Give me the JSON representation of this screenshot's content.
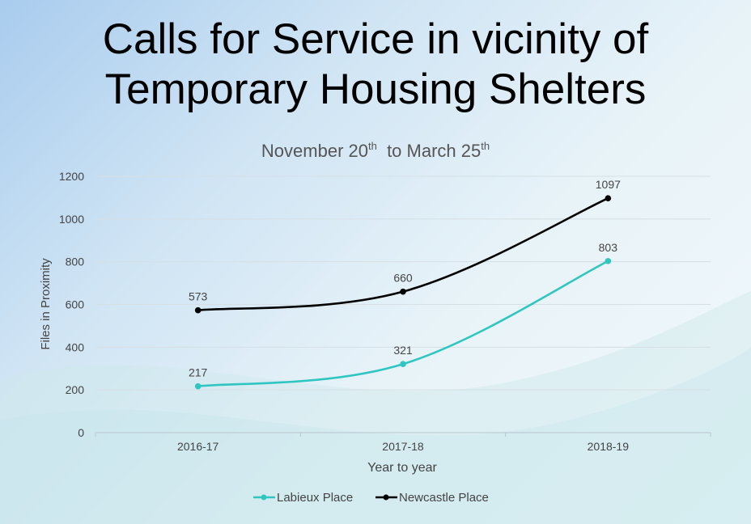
{
  "page": {
    "title_line1": "Calls for Service in vicinity of",
    "title_line2": "Temporary Housing Shelters"
  },
  "chart_data": {
    "type": "line",
    "subtitle": {
      "main": "November 20",
      "sup1": "th",
      "mid": "  to March 25",
      "sup2": "th"
    },
    "categories": [
      "2016-17",
      "2017-18",
      "2018-19"
    ],
    "xlabel": "Year to year",
    "ylabel": "Files in Proximity",
    "ylim": [
      0,
      1200
    ],
    "yticks": [
      0,
      200,
      400,
      600,
      800,
      1000,
      1200
    ],
    "grid": true,
    "legend": "bottom",
    "series": [
      {
        "name": "Labieux Place",
        "values": [
          217,
          321,
          803
        ],
        "color": "#2fc6c1"
      },
      {
        "name": "Newcastle Place",
        "values": [
          573,
          660,
          1097
        ],
        "color": "#000000"
      }
    ]
  }
}
